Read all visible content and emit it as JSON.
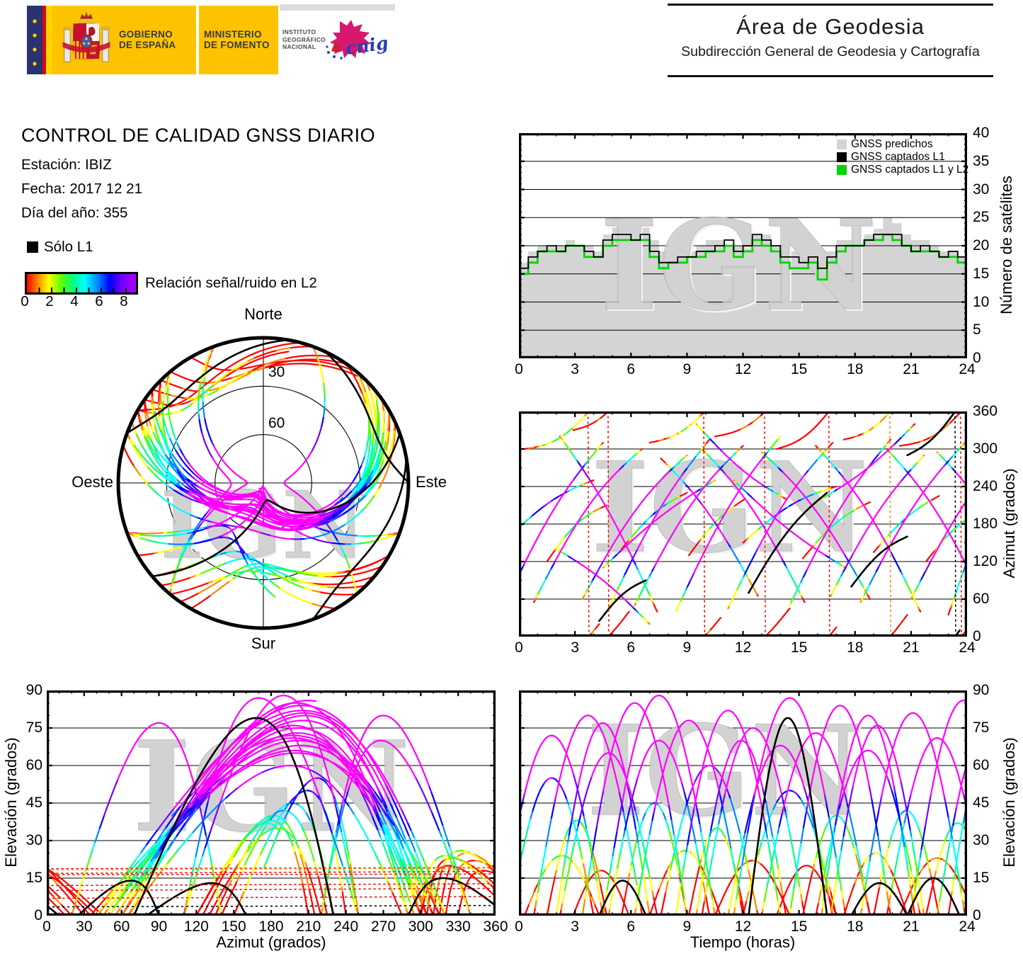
{
  "header": {
    "gobierno": [
      "GOBIERNO",
      "DE ESPAÑA"
    ],
    "ministerio": [
      "MINISTERIO",
      "DE FOMENTO"
    ],
    "instituto": [
      "INSTITUTO",
      "GEOGRÁFICO",
      "NACIONAL"
    ],
    "cnig_label": "cnig",
    "area_title": "Área de Geodesia",
    "area_subtitle": "Subdirección General de Geodesia y Cartografía"
  },
  "report": {
    "title": "CONTROL DE CALIDAD GNSS DIARIO",
    "station_label": "Estación: IBIZ",
    "date_label": "Fecha: 2017 12 21",
    "doy_label": "Día del año: 355"
  },
  "legend": {
    "solo_l1": "Sólo L1",
    "colorbar_label": "Relación señal/ruido en L2",
    "colorbar_ticks": [
      "0",
      "2",
      "4",
      "6",
      "8"
    ],
    "colormap": [
      "#ff0000",
      "#ff8800",
      "#ffff00",
      "#55ff00",
      "#00ff88",
      "#00ffff",
      "#0088ff",
      "#0000ff",
      "#7700ff",
      "#ff00ff"
    ]
  },
  "watermark": "IGN",
  "satellite_passes": {
    "fields": [
      "t0_h",
      "dur_h",
      "az_rise_deg",
      "az_set_deg",
      "az_bow_deg",
      "max_elev_deg",
      "snr_offset",
      "l1_only"
    ],
    "passes": [
      [
        -1.0,
        5.5,
        35,
        310,
        25,
        72,
        0,
        0
      ],
      [
        0.3,
        4.0,
        300,
        380,
        -20,
        24,
        -1,
        0
      ],
      [
        0.8,
        5.8,
        55,
        300,
        30,
        80,
        0.5,
        0
      ],
      [
        1.5,
        3.2,
        120,
        210,
        15,
        38,
        -2,
        0
      ],
      [
        2.2,
        5.2,
        320,
        40,
        20,
        65,
        0,
        0
      ],
      [
        2.9,
        3.0,
        330,
        400,
        -15,
        18,
        -3,
        0
      ],
      [
        3.4,
        5.6,
        60,
        290,
        25,
        85,
        1,
        0
      ],
      [
        4.3,
        2.5,
        25,
        90,
        10,
        14,
        -4,
        1
      ],
      [
        4.8,
        5.4,
        45,
        315,
        22,
        70,
        0,
        0
      ],
      [
        5.5,
        3.5,
        140,
        230,
        12,
        45,
        -1.5,
        0
      ],
      [
        6.2,
        5.8,
        50,
        305,
        28,
        78,
        0.5,
        0
      ],
      [
        7.0,
        3.8,
        310,
        390,
        -18,
        26,
        -2,
        0
      ],
      [
        7.6,
        5.2,
        285,
        65,
        20,
        60,
        -0.5,
        0
      ],
      [
        8.4,
        5.6,
        40,
        320,
        25,
        82,
        1,
        0
      ],
      [
        9.1,
        3.0,
        130,
        220,
        10,
        35,
        -2.5,
        0
      ],
      [
        9.8,
        5.5,
        300,
        55,
        24,
        75,
        0,
        0
      ],
      [
        10.5,
        4.0,
        320,
        405,
        -20,
        22,
        -3,
        0
      ],
      [
        11.2,
        5.6,
        45,
        310,
        26,
        68,
        0,
        0
      ],
      [
        12.0,
        5.0,
        150,
        240,
        14,
        50,
        -1,
        0
      ],
      [
        12.3,
        4.2,
        70,
        230,
        18,
        79,
        0,
        1
      ],
      [
        13.0,
        5.8,
        295,
        60,
        24,
        73,
        0.5,
        0
      ],
      [
        13.8,
        3.2,
        300,
        375,
        -15,
        20,
        -3.5,
        0
      ],
      [
        14.5,
        5.4,
        50,
        315,
        22,
        84,
        1,
        0
      ],
      [
        15.2,
        3.6,
        125,
        215,
        12,
        40,
        -2,
        0
      ],
      [
        15.9,
        5.6,
        305,
        40,
        26,
        66,
        0,
        0
      ],
      [
        16.7,
        5.0,
        65,
        290,
        20,
        76,
        0.5,
        0
      ],
      [
        17.4,
        3.4,
        315,
        395,
        -18,
        25,
        -2.5,
        0
      ],
      [
        17.8,
        3.0,
        80,
        160,
        12,
        13,
        -4,
        1
      ],
      [
        18.3,
        5.6,
        55,
        310,
        24,
        81,
        1,
        0
      ],
      [
        19.0,
        3.5,
        135,
        225,
        10,
        42,
        -1.5,
        0
      ],
      [
        19.7,
        5.4,
        300,
        45,
        25,
        71,
        0,
        0
      ],
      [
        20.4,
        4.0,
        305,
        385,
        -20,
        23,
        -3,
        0
      ],
      [
        21.0,
        5.6,
        60,
        315,
        22,
        86,
        1,
        0
      ],
      [
        21.8,
        3.4,
        120,
        205,
        14,
        37,
        -2,
        0
      ],
      [
        22.4,
        5.2,
        295,
        50,
        26,
        74,
        0.5,
        0
      ],
      [
        23.0,
        4.0,
        35,
        320,
        20,
        63,
        0,
        0
      ],
      [
        20.8,
        2.8,
        290,
        370,
        -12,
        15,
        -4,
        1
      ],
      [
        -0.5,
        4.5,
        160,
        250,
        12,
        55,
        -1,
        0
      ],
      [
        2.0,
        5.0,
        140,
        20,
        10,
        77,
        0.5,
        0
      ],
      [
        16.2,
        5.0,
        220,
        340,
        -10,
        80,
        0.5,
        0
      ],
      [
        9.5,
        4.8,
        340,
        220,
        -12,
        70,
        0,
        0
      ],
      [
        4.5,
        6.0,
        110,
        250,
        10,
        88,
        1,
        0
      ],
      [
        11.5,
        6.0,
        250,
        110,
        -10,
        87,
        1,
        0
      ]
    ]
  },
  "chart_data": [
    {
      "id": "satellites",
      "type": "area",
      "ylabel": "Número de satélites",
      "xlim": [
        0,
        24
      ],
      "ylim": [
        0,
        40
      ],
      "x_ticks": [
        0,
        3,
        6,
        9,
        12,
        15,
        18,
        21,
        24
      ],
      "x_tick_labels": [
        "0",
        "3",
        "6",
        "9",
        "12",
        "15",
        "18",
        "21",
        "24"
      ],
      "y_ticks": [
        0,
        5,
        10,
        15,
        20,
        25,
        30,
        35,
        40
      ],
      "y_tick_labels": [
        "0",
        "5",
        "10",
        "15",
        "20",
        "25",
        "30",
        "35",
        "40"
      ],
      "grid_y": [
        5,
        10,
        15,
        20,
        25,
        30,
        35
      ],
      "step_hours": 0.5,
      "legend": [
        {
          "label": "GNSS predichos",
          "color": "#d4d4d4"
        },
        {
          "label": "GNSS captados L1",
          "color": "#000000"
        },
        {
          "label": "GNSS captados L1 y L2",
          "color": "#00d500"
        }
      ],
      "series": [
        {
          "name": "GNSS predichos",
          "values": [
            17,
            19,
            20,
            20,
            20,
            21,
            20,
            20,
            19,
            22,
            25,
            24,
            23,
            24,
            21,
            19,
            18,
            18,
            19,
            20,
            21,
            21,
            20,
            20,
            21,
            22,
            22,
            20,
            19,
            19,
            18,
            18,
            18,
            19,
            21,
            21,
            21,
            22,
            23,
            25,
            24,
            22,
            21,
            21,
            20,
            19,
            19,
            18,
            18
          ]
        },
        {
          "name": "GNSS captados L1",
          "values": [
            16,
            18,
            19,
            20,
            19,
            20,
            20,
            19,
            18,
            21,
            22,
            22,
            21,
            22,
            19,
            17,
            17,
            18,
            18,
            19,
            19,
            20,
            21,
            19,
            20,
            22,
            21,
            20,
            18,
            18,
            17,
            18,
            16,
            18,
            20,
            20,
            20,
            21,
            22,
            22,
            22,
            20,
            19,
            20,
            19,
            18,
            19,
            18,
            17
          ]
        },
        {
          "name": "GNSS captados L1 y L2",
          "values": [
            15,
            17,
            19,
            19,
            19,
            20,
            20,
            18,
            18,
            20,
            21,
            21,
            21,
            21,
            18,
            16,
            17,
            17,
            18,
            18,
            19,
            19,
            20,
            18,
            19,
            21,
            20,
            19,
            17,
            16,
            16,
            17,
            14,
            17,
            19,
            20,
            20,
            21,
            21,
            22,
            21,
            20,
            19,
            19,
            19,
            18,
            18,
            17,
            17
          ]
        }
      ]
    },
    {
      "id": "azimut_tiempo",
      "type": "line",
      "ylabel": "Azimut (grados)",
      "xlim": [
        0,
        24
      ],
      "ylim": [
        0,
        360
      ],
      "x_tick_labels": [
        "0",
        "3",
        "6",
        "9",
        "12",
        "15",
        "18",
        "21",
        "24"
      ],
      "y_ticks": [
        0,
        60,
        120,
        180,
        240,
        300,
        360
      ],
      "y_tick_labels": [
        "0",
        "60",
        "120",
        "180",
        "240",
        "300",
        "360"
      ],
      "grid_y": [
        60,
        120,
        180,
        240,
        300
      ]
    },
    {
      "id": "skyplot",
      "type": "polar",
      "labels": {
        "north": "Norte",
        "south": "Sur",
        "west": "Oeste",
        "east": "Este"
      },
      "ring_labels": [
        "30",
        "60"
      ],
      "elev_rings": [
        30,
        60
      ]
    },
    {
      "id": "elevacion_azimut",
      "type": "line",
      "xlabel": "Azimut (grados)",
      "ylabel": "Elevación (grados)",
      "xlim": [
        0,
        360
      ],
      "ylim": [
        0,
        90
      ],
      "x_tick_labels": [
        "0",
        "30",
        "60",
        "90",
        "120",
        "150",
        "180",
        "210",
        "240",
        "270",
        "300",
        "330",
        "360"
      ],
      "y_tick_labels": [
        "0",
        "15",
        "30",
        "45",
        "60",
        "75",
        "90"
      ],
      "grid_y": [
        15,
        30,
        45,
        60,
        75
      ]
    },
    {
      "id": "elevacion_tiempo",
      "type": "line",
      "xlabel": "Tiempo (horas)",
      "ylabel": "Elevación (grados)",
      "xlim": [
        0,
        24
      ],
      "ylim": [
        0,
        90
      ],
      "x_tick_labels": [
        "0",
        "3",
        "6",
        "9",
        "12",
        "15",
        "18",
        "21",
        "24"
      ],
      "y_tick_labels": [
        "0",
        "15",
        "30",
        "45",
        "60",
        "75",
        "90"
      ],
      "grid_y": [
        15,
        30,
        45,
        60,
        75
      ]
    }
  ]
}
